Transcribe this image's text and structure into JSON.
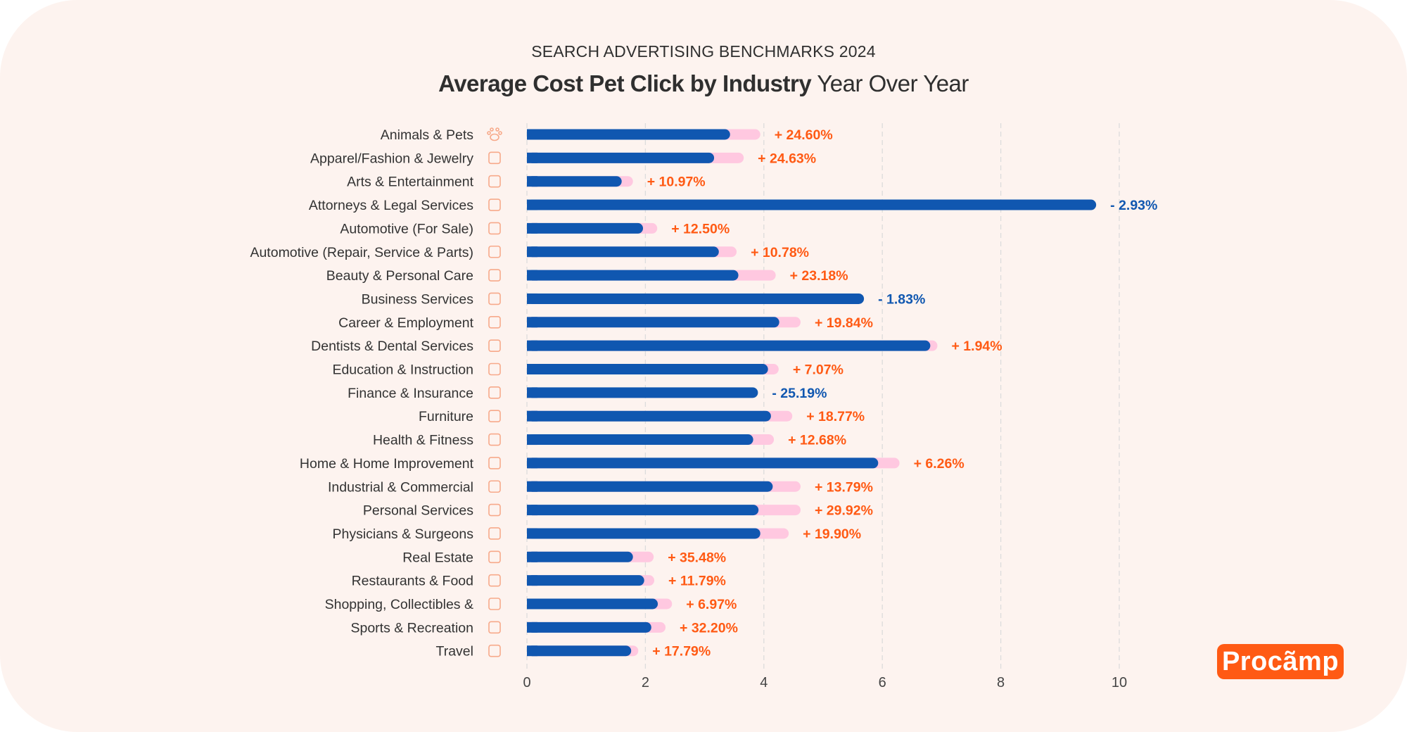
{
  "header": {
    "supertitle": "SEARCH ADVERTISING BENCHMARKS 2024",
    "title_bold": "Average Cost Pet Click by Industry",
    "title_regular": "Year Over Year"
  },
  "logo": {
    "text": "Procãmp"
  },
  "colors": {
    "current": "#1057b0",
    "previous": "#ffc8e0",
    "increase": "#ff5a14",
    "decrease": "#1057b0",
    "icon": "#f7a98a",
    "background": "#fdf3ef"
  },
  "chart_data": {
    "type": "bar",
    "orientation": "horizontal",
    "xlim": [
      0,
      10
    ],
    "x_ticks": [
      "0",
      "2",
      "4",
      "6",
      "8",
      "10"
    ],
    "grid": "vertical dashed",
    "categories": [
      "Animals & Pets",
      "Apparel/Fashion & Jewelry",
      "Arts & Entertainment",
      "Attorneys & Legal Services",
      "Automotive (For Sale)",
      "Automotive (Repair, Service & Parts)",
      "Beauty & Personal Care",
      "Business Services",
      "Career & Employment",
      "Dentists & Dental Services",
      "Education & Instruction",
      "Finance & Insurance",
      "Furniture",
      "Health & Fitness",
      "Home & Home Improvement",
      "Industrial & Commercial",
      "Personal Services",
      "Physicians & Surgeons",
      "Real Estate",
      "Restaurants & Food",
      "Shopping, Collectibles &",
      "Sports & Recreation",
      "Travel"
    ],
    "icons": [
      "paw-icon",
      "tshirt-icon",
      "palette-icon",
      "gavel-icon",
      "tag-icon",
      "car-icon",
      "hair-dryer-icon",
      "scroll-icon",
      "briefcase-icon",
      "tooth-icon",
      "graduation-cap-icon",
      "calculator-icon",
      "cabinet-icon",
      "heart-pulse-icon",
      "house-icon",
      "factory-buildings-icon",
      "box-icon",
      "shield-plus-icon",
      "factory-icon",
      "bowl-icon",
      "gift-icon",
      "ball-icon",
      "plane-icon"
    ],
    "series": [
      {
        "values": [
          3.43,
          3.16,
          1.6,
          9.61,
          1.96,
          3.24,
          3.57,
          5.69,
          4.26,
          6.81,
          4.07,
          3.9,
          4.12,
          3.82,
          5.93,
          4.15,
          3.91,
          3.94,
          1.79,
          1.98,
          2.21,
          2.1,
          1.76
        ]
      },
      {
        "values": [
          3.94,
          3.66,
          1.79,
          null,
          2.2,
          3.54,
          4.2,
          null,
          4.62,
          6.93,
          4.25,
          null,
          4.48,
          4.17,
          6.29,
          4.62,
          4.62,
          4.42,
          2.14,
          2.15,
          2.45,
          2.34,
          1.88
        ]
      }
    ],
    "change_labels": [
      "+ 24.60%",
      "+ 24.63%",
      "+ 10.97%",
      "- 2.93%",
      "+ 12.50%",
      "+ 10.78%",
      "+ 23.18%",
      "- 1.83%",
      "+ 19.84%",
      "+ 1.94%",
      "+ 7.07%",
      "- 25.19%",
      "+ 18.77%",
      "+ 12.68%",
      "+ 6.26%",
      "+ 13.79%",
      "+ 29.92%",
      "+ 19.90%",
      "+ 35.48%",
      "+ 11.79%",
      "+ 6.97%",
      "+ 32.20%",
      "+ 17.79%"
    ]
  }
}
